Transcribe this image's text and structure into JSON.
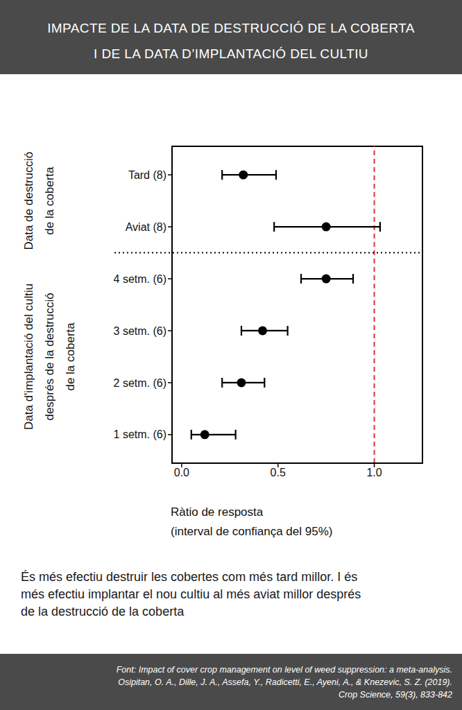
{
  "chart_data": {
    "type": "forest",
    "title": [
      "IMPACTE DE LA DATA DE DESTRUCCIÓ DE LA COBERTA",
      "I DE LA DATA D’IMPLANTACIÓ DEL CULTIU"
    ],
    "categories": [
      "Tard (8)",
      "Aviat (8)",
      "4 setm. (6)",
      "3 setm. (6)",
      "2 setm. (6)",
      "1 setm. (6)"
    ],
    "values": [
      0.32,
      0.75,
      0.75,
      0.42,
      0.31,
      0.12
    ],
    "ci_low": [
      0.21,
      0.48,
      0.62,
      0.31,
      0.21,
      0.05
    ],
    "ci_high": [
      0.49,
      1.03,
      0.89,
      0.55,
      0.43,
      0.28
    ],
    "color": "#000000",
    "marker": "circle",
    "reference_line": 1,
    "group_labels": [
      [
        "Data de destrucció",
        "de la coberta"
      ],
      [
        "Data d'implantació del cultiu",
        "després de la destrucció",
        "de la coberta"
      ]
    ],
    "xlabel": [
      "Ràtio de resposta",
      "(interval de confiança del 95%)"
    ],
    "xlim": [
      -0.05,
      1.25
    ],
    "xticks": [
      {
        "value": 0,
        "label": "0.0"
      },
      0.5,
      {
        "value": 1,
        "label": "1.0"
      }
    ],
    "caption": [
      "És més efectiu destruir les cobertes com més tard millor. I és",
      "més efectiu implantar el nou cultiu al més aviat millor després",
      "de la destrucció de la coberta"
    ],
    "source": [
      "Font: Impact of cover crop management on level of weed suppression: a meta-analysis.",
      "Osipitan, O. A., Dille, J. A., Assefa, Y., Radicetti, E., Ayeni, A., & Knezevic, S. Z. (2019).",
      "Crop Science, 59(3), 833-842"
    ]
  }
}
